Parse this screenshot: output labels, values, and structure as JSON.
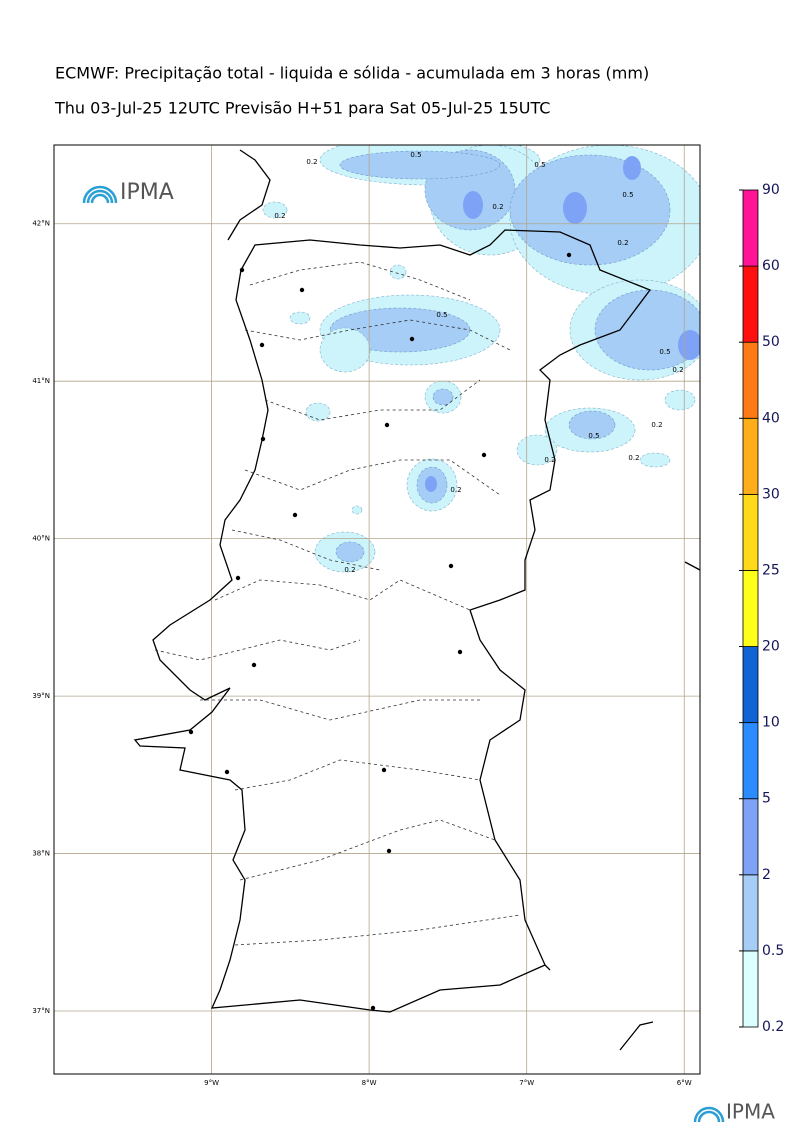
{
  "header": {
    "title": "ECMWF: Precipitação total - liquida e sólida - acumulada em 3 horas (mm)",
    "subtitle": "Thu 03-Jul-25 12UTC Previsão H+51 para Sat 05-Jul-25 15UTC"
  },
  "logo_top": "IPMA",
  "logo_bottom": "IPMA",
  "map": {
    "lon_range": [
      -10,
      -5.9
    ],
    "lat_range": [
      36.6,
      42.5
    ],
    "lon_ticks": [
      {
        "value": -9,
        "label": "9°W"
      },
      {
        "value": -8,
        "label": "8°W"
      },
      {
        "value": -7,
        "label": "7°W"
      },
      {
        "value": -6,
        "label": "6°W"
      }
    ],
    "lat_ticks": [
      {
        "value": 42,
        "label": "42°N"
      },
      {
        "value": 41,
        "label": "41°N"
      },
      {
        "value": 40,
        "label": "40°N"
      },
      {
        "value": 39,
        "label": "39°N"
      },
      {
        "value": 38,
        "label": "38°N"
      },
      {
        "value": 37,
        "label": "37°N"
      }
    ],
    "contour_labels": [
      "0.2",
      "0.5",
      "0.5",
      "0.2",
      "0.5",
      "0.2",
      "0.2",
      "0.5",
      "0.5",
      "0.2",
      "0.2",
      "0.5",
      "0.2",
      "0.2",
      "0.2",
      "0.2"
    ]
  },
  "colorbar": {
    "levels": [
      0.2,
      0.5,
      2,
      5,
      10,
      20,
      25,
      30,
      40,
      50,
      60,
      90
    ],
    "colors": [
      "#dcffff",
      "#a6cdf5",
      "#7ea2f6",
      "#2a8cff",
      "#1164d6",
      "#ffff1a",
      "#ffd91a",
      "#ffae1a",
      "#ff7a14",
      "#ff1010",
      "#ff1496"
    ]
  }
}
